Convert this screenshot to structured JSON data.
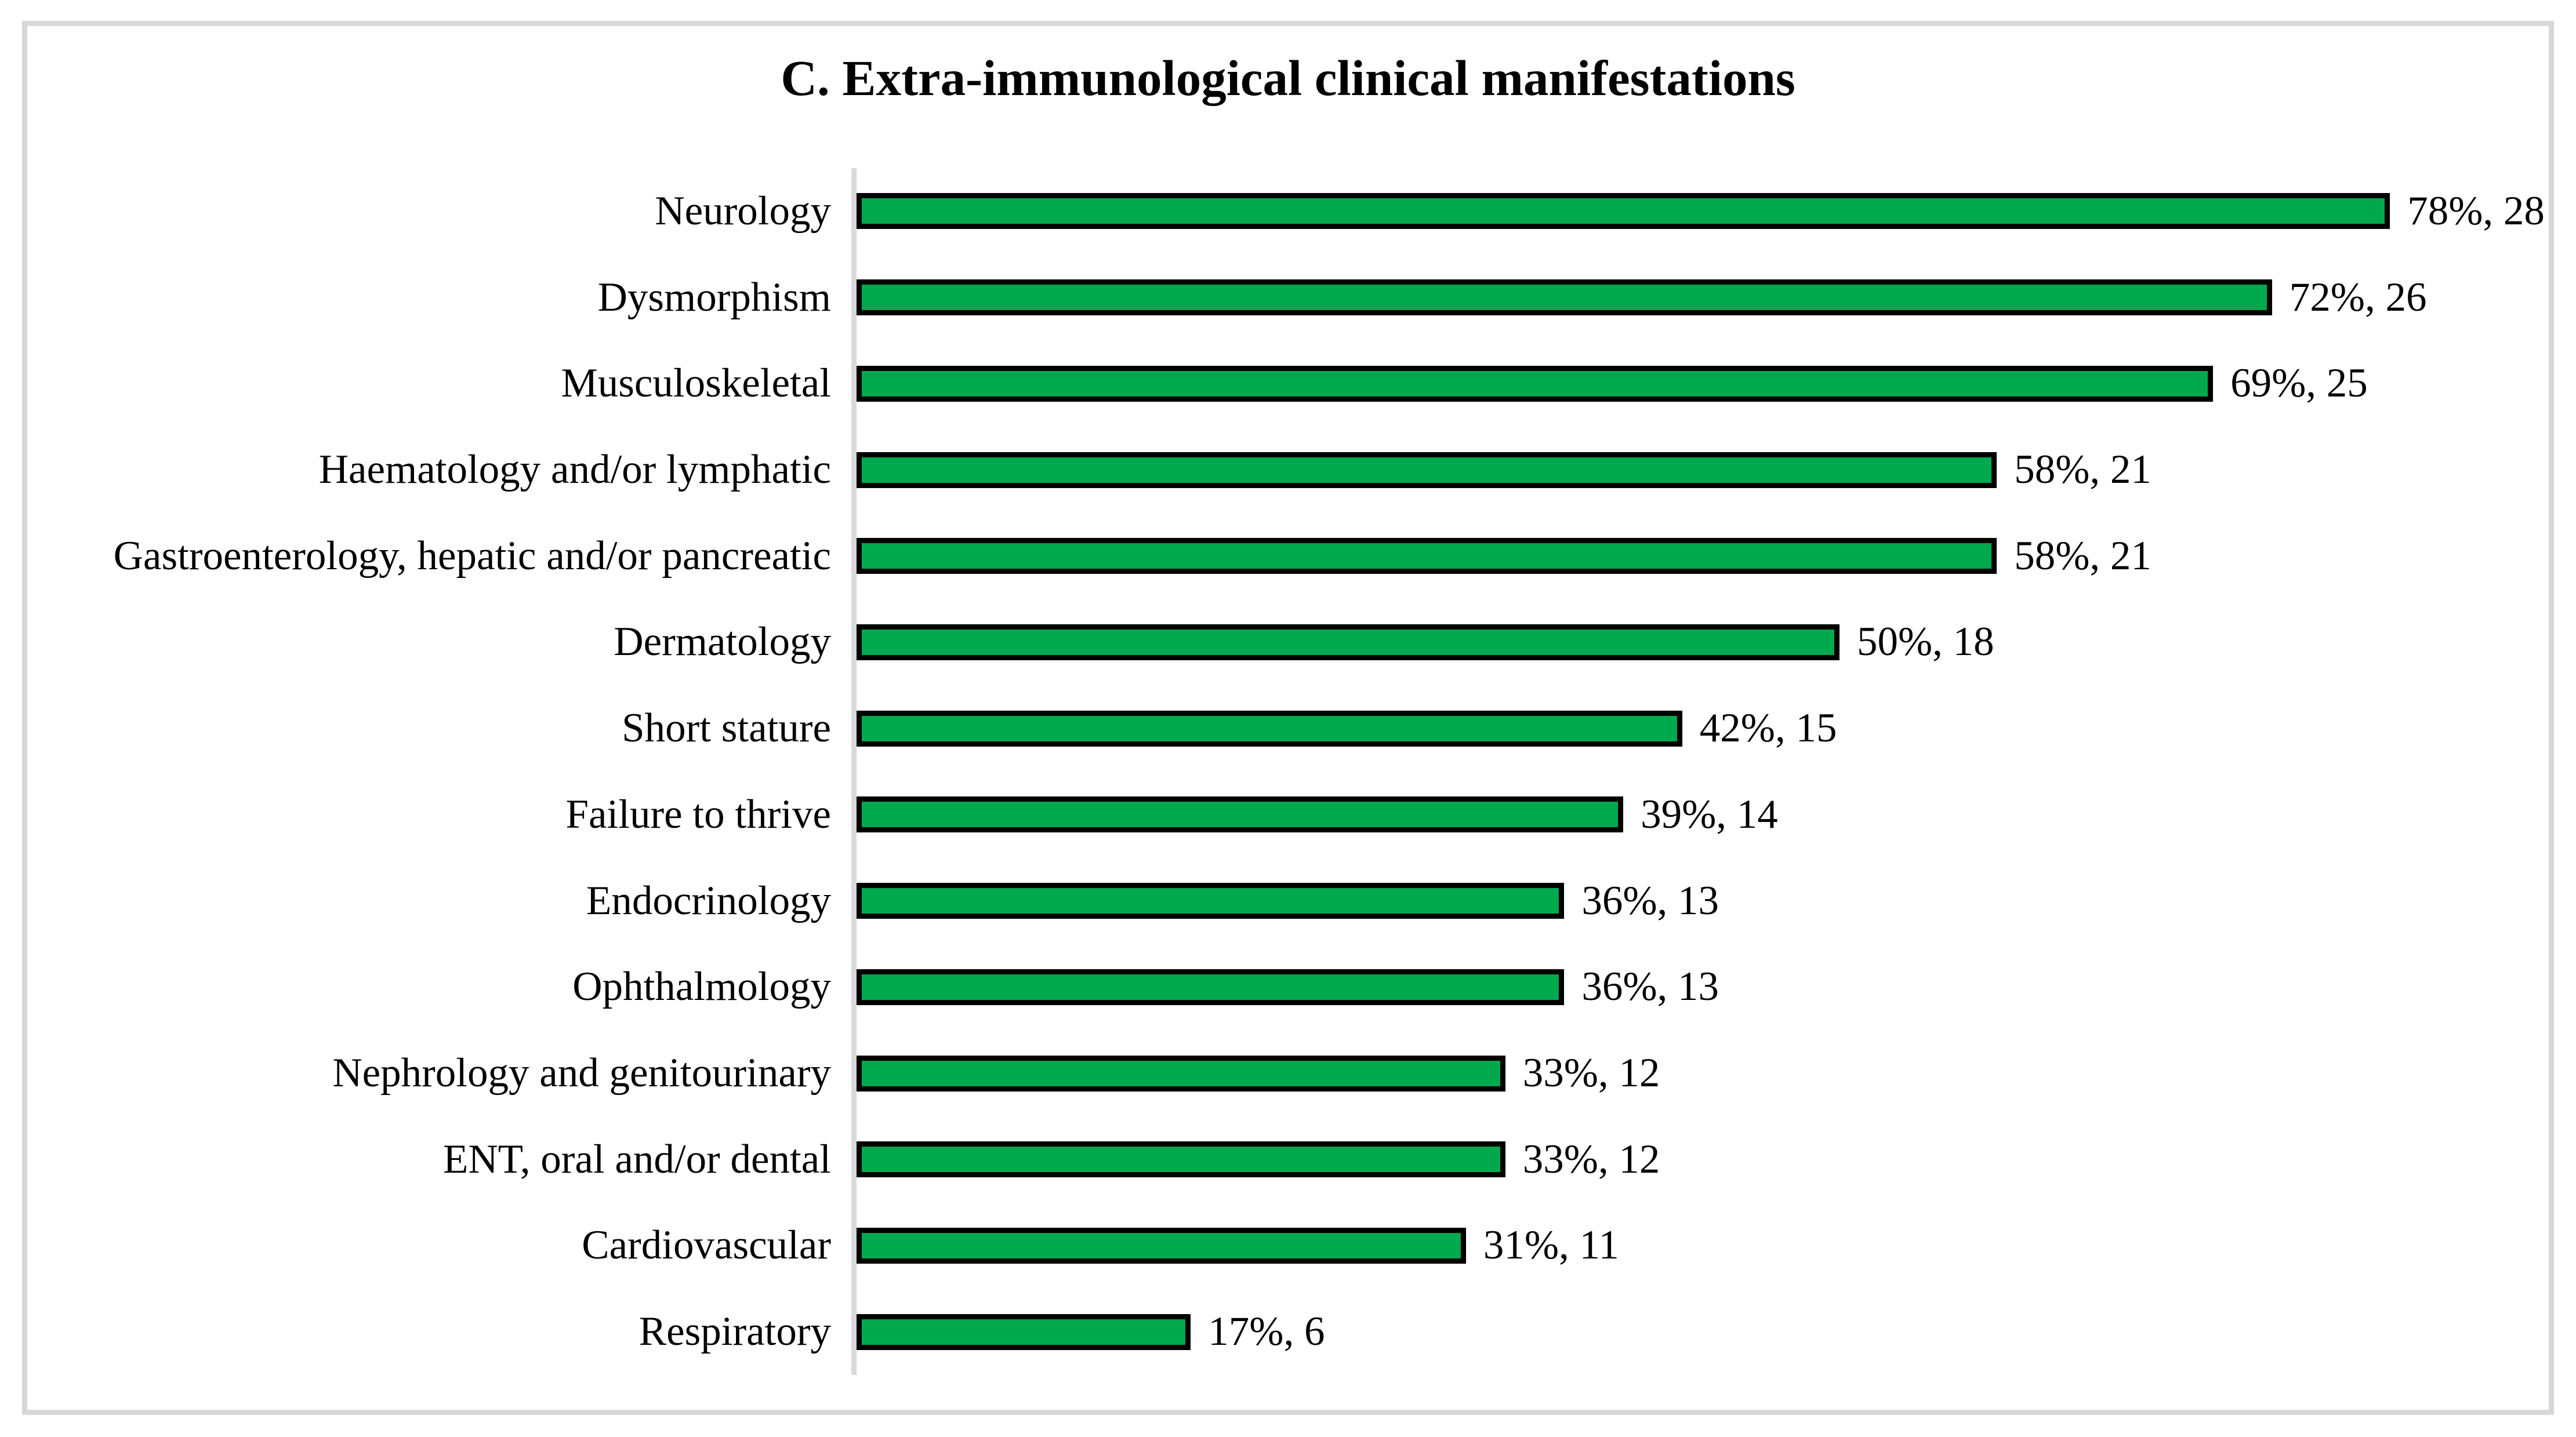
{
  "title": "C. Extra-immunological clinical manifestations",
  "chart_data": {
    "type": "bar",
    "orientation": "horizontal",
    "title": "C. Extra-immunological clinical manifestations",
    "categories": [
      "Neurology",
      "Dysmorphism",
      "Musculoskeletal",
      "Haematology and/or lymphatic",
      "Gastroenterology, hepatic and/or pancreatic",
      "Dermatology",
      "Short stature",
      "Failure to thrive",
      "Endocrinology",
      "Ophthalmology",
      "Nephrology and genitourinary",
      "ENT, oral and/or dental",
      "Cardiovascular",
      "Respiratory"
    ],
    "series": [
      {
        "name": "percent_of_cohort",
        "values": [
          78,
          72,
          69,
          58,
          58,
          50,
          42,
          39,
          36,
          36,
          33,
          33,
          31,
          17
        ]
      },
      {
        "name": "patient_count",
        "values": [
          28,
          26,
          25,
          21,
          21,
          18,
          15,
          14,
          13,
          13,
          12,
          12,
          11,
          6
        ]
      }
    ],
    "data_labels": [
      "78%, 28",
      "72%, 26",
      "69%, 25",
      "58%, 21",
      "58%, 21",
      "50%, 18",
      "42%, 15",
      "39%, 14",
      "36%, 13",
      "36%, 13",
      "33%, 12",
      "33%, 12",
      "31%, 11",
      "17%, 6"
    ],
    "xlim": [
      0,
      100
    ],
    "grid": false,
    "legend": false,
    "bar_color": "#00A94E",
    "bar_border_color": "#000000",
    "axis_line_color": "#D9D9D9"
  }
}
